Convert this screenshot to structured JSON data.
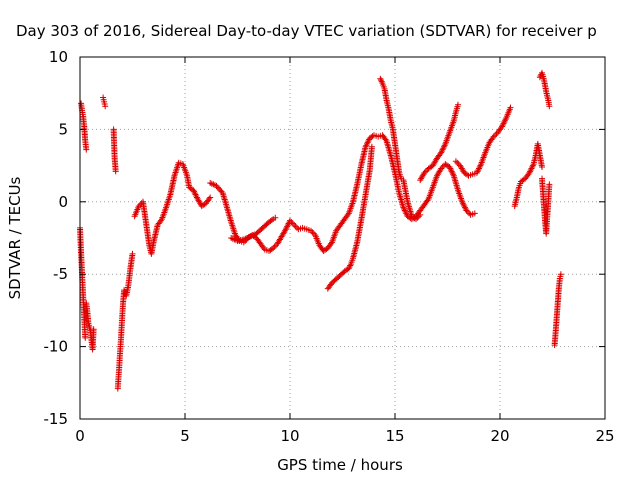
{
  "chart_data": {
    "type": "scatter",
    "title": "Day 303 of 2016, Sidereal Day-to-day VTEC variation (SDTVAR) for receiver p",
    "xlabel": "GPS time / hours",
    "ylabel": "SDTVAR / TECUs",
    "xlim": [
      0,
      25
    ],
    "ylim": [
      -15,
      10
    ],
    "xticks": [
      "0",
      "5",
      "10",
      "15",
      "20",
      "25"
    ],
    "yticks": [
      "-15",
      "-10",
      "-5",
      "0",
      "5",
      "10"
    ],
    "xtick_values": [
      0,
      5,
      10,
      15,
      20,
      25
    ],
    "ytick_values": [
      -15,
      -10,
      -5,
      0,
      5,
      10
    ],
    "grid": true,
    "marker": "plus",
    "color": "#e00000",
    "series": [
      {
        "segments": [
          [
            [
              0.0,
              -1.8
            ],
            [
              0.05,
              -3.5
            ],
            [
              0.1,
              -5.0
            ],
            [
              0.15,
              -6.5
            ],
            [
              0.2,
              -8.0
            ],
            [
              0.25,
              -9.4
            ]
          ],
          [
            [
              0.05,
              6.8
            ],
            [
              0.1,
              6.3
            ],
            [
              0.15,
              5.9
            ],
            [
              0.2,
              5.2
            ],
            [
              0.25,
              4.2
            ],
            [
              0.3,
              3.6
            ]
          ],
          [
            [
              0.3,
              -7.0
            ],
            [
              0.35,
              -7.6
            ],
            [
              0.4,
              -8.4
            ],
            [
              0.5,
              -8.9
            ],
            [
              0.55,
              -9.6
            ],
            [
              0.6,
              -10.2
            ],
            [
              0.65,
              -8.8
            ]
          ],
          [
            [
              1.1,
              7.2
            ],
            [
              1.15,
              6.9
            ],
            [
              1.2,
              6.6
            ]
          ],
          [
            [
              1.6,
              5.0
            ],
            [
              1.65,
              3.0
            ],
            [
              1.7,
              2.1
            ]
          ],
          [
            [
              1.8,
              -12.9
            ],
            [
              1.85,
              -11.8
            ],
            [
              1.9,
              -10.6
            ],
            [
              1.95,
              -9.5
            ],
            [
              2.0,
              -8.2
            ],
            [
              2.05,
              -7.0
            ],
            [
              2.1,
              -6.1
            ],
            [
              2.2,
              -6.5
            ],
            [
              2.3,
              -5.8
            ],
            [
              2.4,
              -4.6
            ],
            [
              2.5,
              -3.6
            ]
          ],
          [
            [
              2.6,
              -1.0
            ],
            [
              2.8,
              -0.3
            ],
            [
              3.0,
              0.0
            ],
            [
              3.1,
              -1.0
            ],
            [
              3.2,
              -2.0
            ],
            [
              3.3,
              -3.0
            ],
            [
              3.4,
              -3.6
            ],
            [
              3.5,
              -2.8
            ],
            [
              3.7,
              -1.6
            ],
            [
              3.9,
              -1.2
            ],
            [
              4.1,
              -0.4
            ],
            [
              4.3,
              0.5
            ],
            [
              4.5,
              1.8
            ],
            [
              4.7,
              2.7
            ],
            [
              4.9,
              2.6
            ],
            [
              5.1,
              1.8
            ],
            [
              5.2,
              1.0
            ],
            [
              5.4,
              0.8
            ],
            [
              5.6,
              0.2
            ],
            [
              5.8,
              -0.3
            ],
            [
              6.0,
              -0.1
            ],
            [
              6.2,
              0.3
            ]
          ],
          [
            [
              6.2,
              1.3
            ],
            [
              6.5,
              1.1
            ],
            [
              6.8,
              0.6
            ],
            [
              7.0,
              -0.4
            ],
            [
              7.2,
              -1.4
            ],
            [
              7.4,
              -2.3
            ],
            [
              7.6,
              -2.7
            ],
            [
              7.8,
              -2.8
            ],
            [
              8.0,
              -2.5
            ],
            [
              8.2,
              -2.3
            ],
            [
              8.4,
              -2.5
            ],
            [
              8.6,
              -2.9
            ],
            [
              8.8,
              -3.3
            ],
            [
              9.0,
              -3.4
            ],
            [
              9.2,
              -3.2
            ],
            [
              9.4,
              -2.9
            ],
            [
              9.6,
              -2.4
            ],
            [
              9.8,
              -1.9
            ],
            [
              10.0,
              -1.3
            ],
            [
              10.2,
              -1.6
            ],
            [
              10.4,
              -1.9
            ],
            [
              10.6,
              -1.8
            ],
            [
              10.8,
              -1.9
            ],
            [
              11.0,
              -2.0
            ],
            [
              11.2,
              -2.3
            ],
            [
              11.4,
              -3.0
            ],
            [
              11.6,
              -3.4
            ],
            [
              11.8,
              -3.2
            ],
            [
              12.0,
              -2.8
            ],
            [
              12.2,
              -2.0
            ],
            [
              12.4,
              -1.6
            ],
            [
              12.6,
              -1.2
            ],
            [
              12.8,
              -0.8
            ],
            [
              13.0,
              0.0
            ],
            [
              13.2,
              1.2
            ],
            [
              13.4,
              2.6
            ],
            [
              13.6,
              3.8
            ],
            [
              13.8,
              4.4
            ],
            [
              14.0,
              4.6
            ],
            [
              14.2,
              4.5
            ],
            [
              14.4,
              4.6
            ],
            [
              14.6,
              4.2
            ],
            [
              14.8,
              3.2
            ],
            [
              15.0,
              2.0
            ],
            [
              15.2,
              0.6
            ],
            [
              15.4,
              -0.4
            ],
            [
              15.6,
              -1.0
            ],
            [
              15.8,
              -1.2
            ],
            [
              16.0,
              -1.0
            ],
            [
              16.2,
              -0.6
            ],
            [
              16.4,
              -0.2
            ],
            [
              16.6,
              0.2
            ],
            [
              16.8,
              1.0
            ],
            [
              17.0,
              1.8
            ],
            [
              17.2,
              2.3
            ],
            [
              17.4,
              2.6
            ],
            [
              17.6,
              2.4
            ],
            [
              17.8,
              1.8
            ],
            [
              18.0,
              0.8
            ],
            [
              18.2,
              0.0
            ],
            [
              18.4,
              -0.6
            ],
            [
              18.6,
              -0.9
            ],
            [
              18.8,
              -0.8
            ]
          ],
          [
            [
              7.2,
              -2.5
            ],
            [
              7.5,
              -2.7
            ],
            [
              7.8,
              -2.6
            ],
            [
              8.1,
              -2.4
            ],
            [
              8.4,
              -2.2
            ],
            [
              8.7,
              -1.8
            ],
            [
              9.0,
              -1.4
            ],
            [
              9.2,
              -1.2
            ],
            [
              9.3,
              -1.1
            ]
          ],
          [
            [
              11.8,
              -6.0
            ],
            [
              12.0,
              -5.6
            ],
            [
              12.3,
              -5.2
            ],
            [
              12.6,
              -4.8
            ],
            [
              12.8,
              -4.6
            ],
            [
              12.9,
              -4.3
            ],
            [
              13.0,
              -3.9
            ],
            [
              13.2,
              -2.8
            ],
            [
              13.4,
              -1.2
            ],
            [
              13.6,
              0.5
            ],
            [
              13.8,
              2.2
            ],
            [
              13.9,
              3.8
            ]
          ],
          [
            [
              14.3,
              8.5
            ],
            [
              14.4,
              8.2
            ],
            [
              14.5,
              7.8
            ],
            [
              14.6,
              7.0
            ],
            [
              14.7,
              6.4
            ],
            [
              14.8,
              5.6
            ],
            [
              14.9,
              5.0
            ],
            [
              15.0,
              4.0
            ],
            [
              15.1,
              3.0
            ],
            [
              15.2,
              2.0
            ],
            [
              15.3,
              1.6
            ]
          ],
          [
            [
              15.4,
              1.5
            ],
            [
              15.6,
              0.0
            ],
            [
              15.8,
              -1.0
            ],
            [
              16.0,
              -1.2
            ],
            [
              16.2,
              -0.9
            ]
          ],
          [
            [
              16.2,
              1.5
            ],
            [
              16.4,
              2.0
            ],
            [
              16.6,
              2.3
            ],
            [
              16.8,
              2.5
            ],
            [
              17.0,
              3.0
            ],
            [
              17.2,
              3.4
            ],
            [
              17.4,
              4.0
            ],
            [
              17.6,
              4.8
            ],
            [
              17.8,
              5.6
            ],
            [
              17.9,
              6.2
            ],
            [
              18.0,
              6.7
            ]
          ],
          [
            [
              17.9,
              2.8
            ],
            [
              18.1,
              2.5
            ],
            [
              18.3,
              2.0
            ],
            [
              18.5,
              1.8
            ],
            [
              18.7,
              1.9
            ],
            [
              18.9,
              2.0
            ],
            [
              19.1,
              2.6
            ],
            [
              19.3,
              3.4
            ],
            [
              19.5,
              4.1
            ],
            [
              19.7,
              4.5
            ],
            [
              19.9,
              4.8
            ],
            [
              20.1,
              5.2
            ],
            [
              20.3,
              5.8
            ],
            [
              20.5,
              6.5
            ]
          ],
          [
            [
              20.7,
              -0.3
            ],
            [
              20.8,
              0.3
            ],
            [
              20.9,
              1.0
            ],
            [
              21.0,
              1.4
            ],
            [
              21.2,
              1.6
            ],
            [
              21.4,
              2.0
            ],
            [
              21.6,
              2.6
            ],
            [
              21.7,
              3.2
            ],
            [
              21.8,
              4.0
            ],
            [
              21.9,
              3.2
            ],
            [
              22.0,
              2.4
            ]
          ],
          [
            [
              21.9,
              8.6
            ],
            [
              22.0,
              8.9
            ],
            [
              22.1,
              8.4
            ],
            [
              22.2,
              7.6
            ],
            [
              22.3,
              7.0
            ],
            [
              22.35,
              6.6
            ]
          ],
          [
            [
              22.0,
              1.6
            ],
            [
              22.05,
              0.6
            ],
            [
              22.1,
              -0.4
            ],
            [
              22.15,
              -1.4
            ],
            [
              22.2,
              -2.2
            ],
            [
              22.25,
              -1.0
            ],
            [
              22.3,
              0.0
            ],
            [
              22.35,
              1.2
            ]
          ],
          [
            [
              22.6,
              -9.9
            ],
            [
              22.65,
              -9.0
            ],
            [
              22.7,
              -8.0
            ],
            [
              22.75,
              -7.0
            ],
            [
              22.8,
              -6.0
            ],
            [
              22.85,
              -5.3
            ],
            [
              22.9,
              -5.0
            ]
          ]
        ]
      }
    ]
  }
}
